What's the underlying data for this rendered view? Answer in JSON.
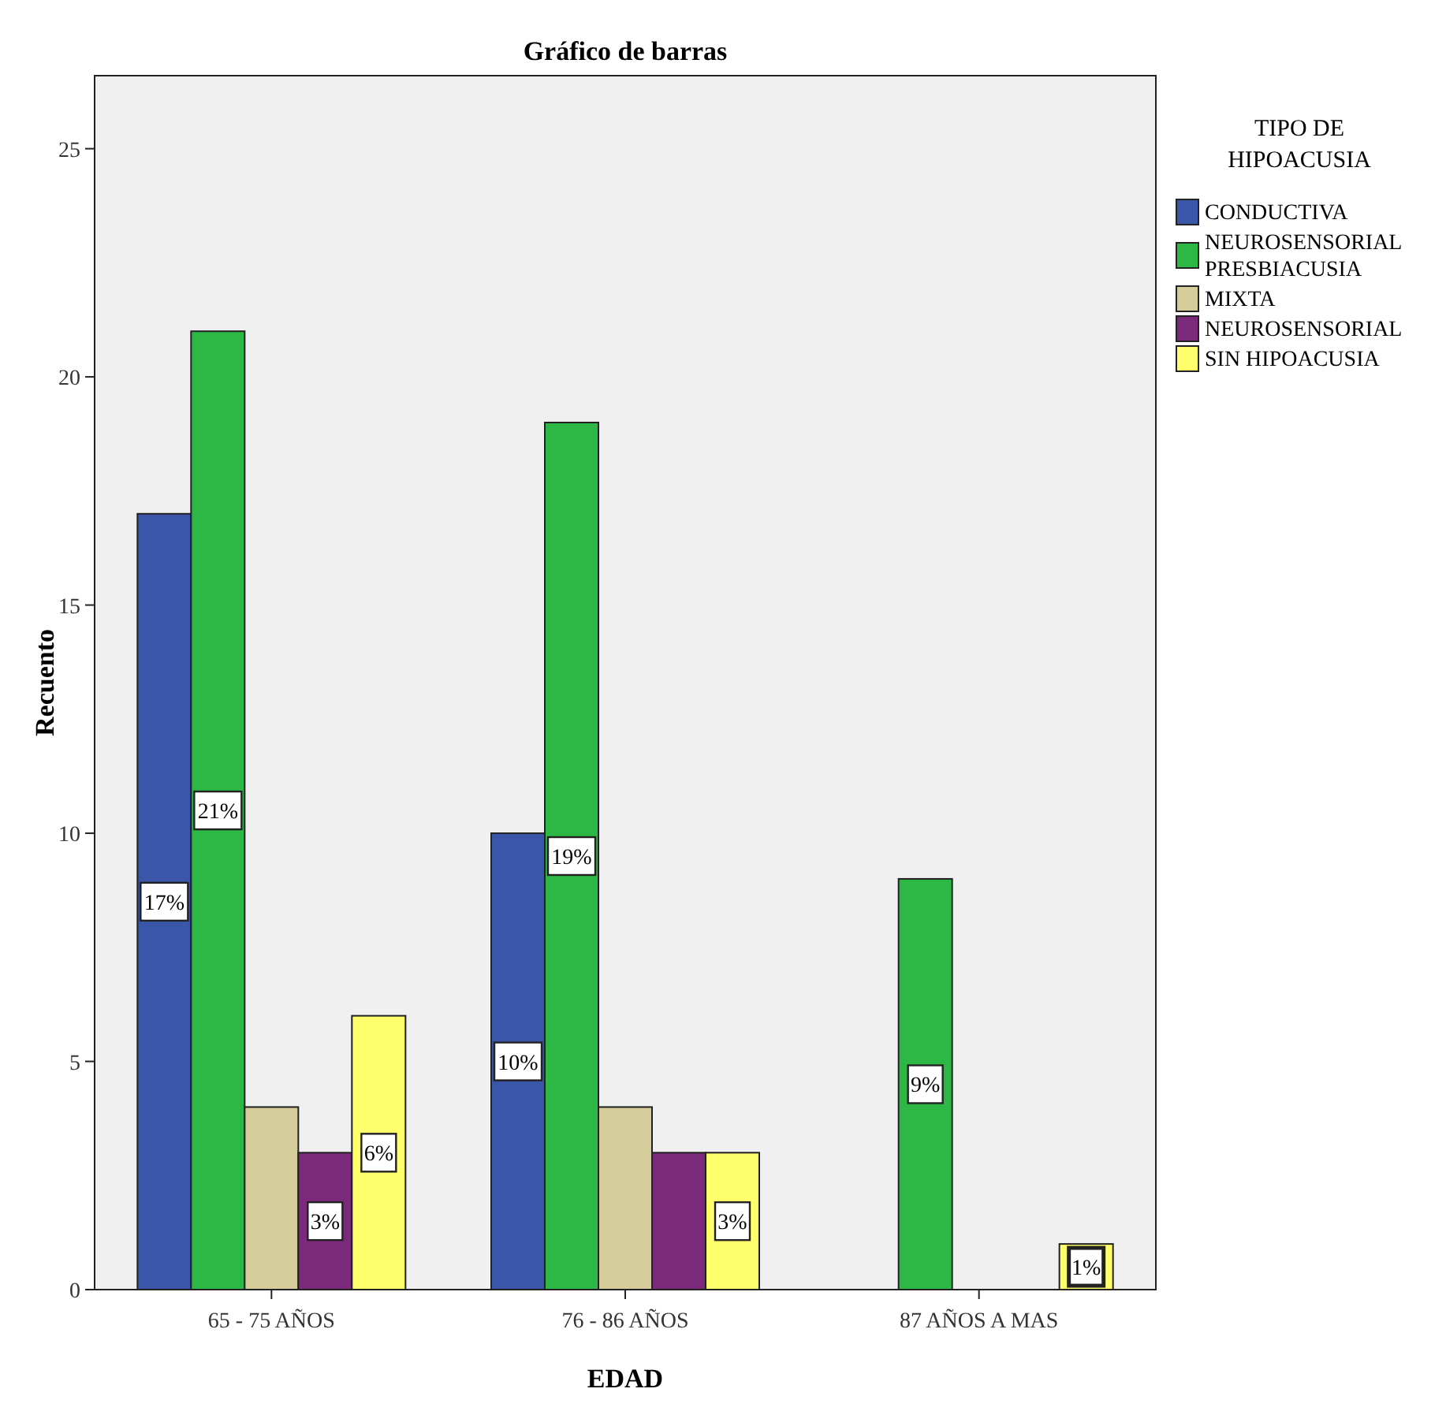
{
  "chart_data": {
    "type": "bar",
    "title": "Gráfico de barras",
    "xlabel": "EDAD",
    "ylabel": "Recuento",
    "legend_title": "TIPO DE HIPOACUSIA",
    "legend": "right",
    "categories": [
      "65 - 75 AÑOS",
      "76 - 86 AÑOS",
      "87 AÑOS A MAS"
    ],
    "ylim": [
      0,
      26.6
    ],
    "yticks": [
      0,
      5,
      10,
      15,
      20,
      25
    ],
    "grid": false,
    "series": [
      {
        "name": "CONDUCTIVA",
        "color": "#3a56a8",
        "values": [
          17,
          10,
          null
        ],
        "value_labels": [
          "17%",
          "10%",
          null
        ]
      },
      {
        "name": "NEUROSENSORIAL PRESBIACUSIA",
        "color": "#2db845",
        "values": [
          21,
          19,
          9
        ],
        "value_labels": [
          "21%",
          "19%",
          "9%"
        ]
      },
      {
        "name": "MIXTA",
        "color": "#d4cc99",
        "values": [
          4,
          4,
          null
        ],
        "value_labels": [
          null,
          null,
          null
        ]
      },
      {
        "name": "NEUROSENSORIAL",
        "color": "#7b2a7b",
        "values": [
          3,
          3,
          null
        ],
        "value_labels": [
          "3%",
          null,
          null
        ]
      },
      {
        "name": "SIN HIPOACUSIA",
        "color": "#ffff6b",
        "values": [
          6,
          3,
          1
        ],
        "value_labels": [
          "6%",
          "3%",
          "1%"
        ]
      }
    ]
  }
}
